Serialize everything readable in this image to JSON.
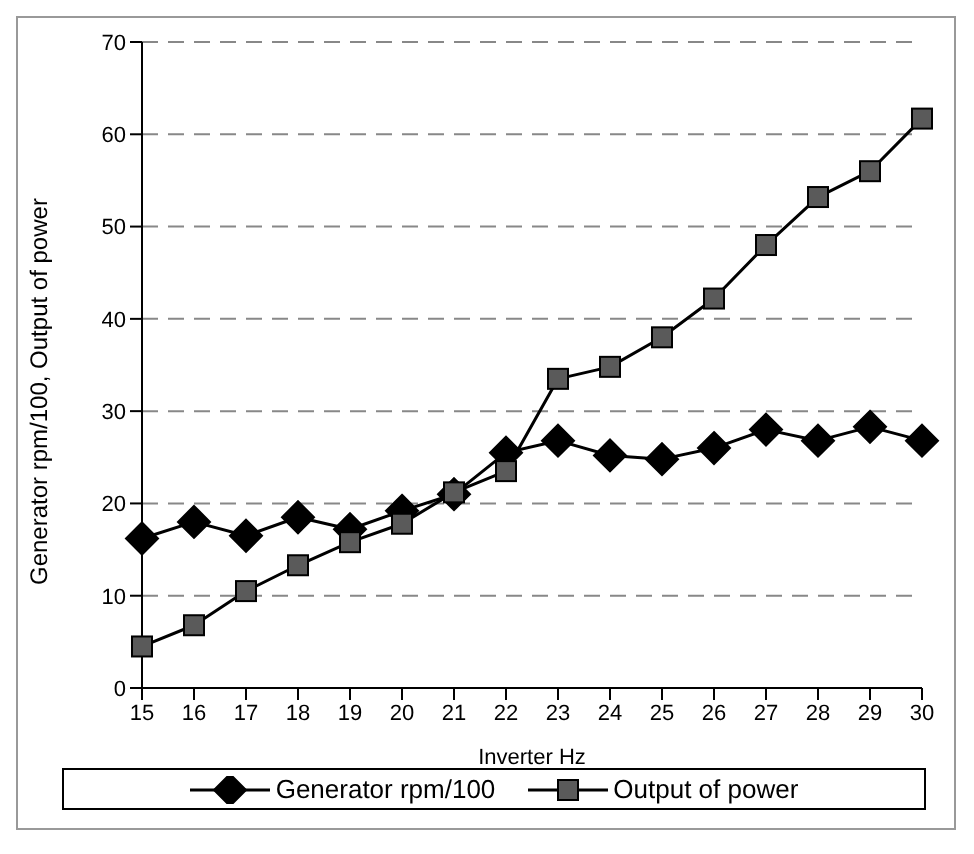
{
  "chart_data": {
    "type": "line",
    "xlabel": "Inverter Hz",
    "ylabel": "Generator rpm/100, Output of power",
    "categories": [
      "15",
      "16",
      "17",
      "18",
      "19",
      "20",
      "21",
      "22",
      "23",
      "24",
      "25",
      "26",
      "27",
      "28",
      "29",
      "30"
    ],
    "series": [
      {
        "name": "Generator rpm/100",
        "color": "#000000",
        "marker": "diamond",
        "values": [
          16.2,
          18,
          16.5,
          18.5,
          17.2,
          19.2,
          21,
          25.5,
          26.8,
          25.2,
          24.8,
          26,
          28,
          26.8,
          28.3,
          26.8
        ]
      },
      {
        "name": "Output of power",
        "color": "#5a5a5a",
        "marker": "square",
        "values": [
          4.5,
          6.8,
          10.5,
          13.3,
          15.8,
          17.8,
          21.2,
          23.5,
          33.5,
          34.8,
          38,
          42.2,
          48,
          53.2,
          56,
          61.7
        ]
      }
    ],
    "ylim": [
      0,
      70
    ],
    "yticks": [
      0,
      10,
      20,
      30,
      40,
      50,
      60,
      70
    ],
    "grid": "y",
    "legend": "bottom",
    "line_style": "solid"
  }
}
